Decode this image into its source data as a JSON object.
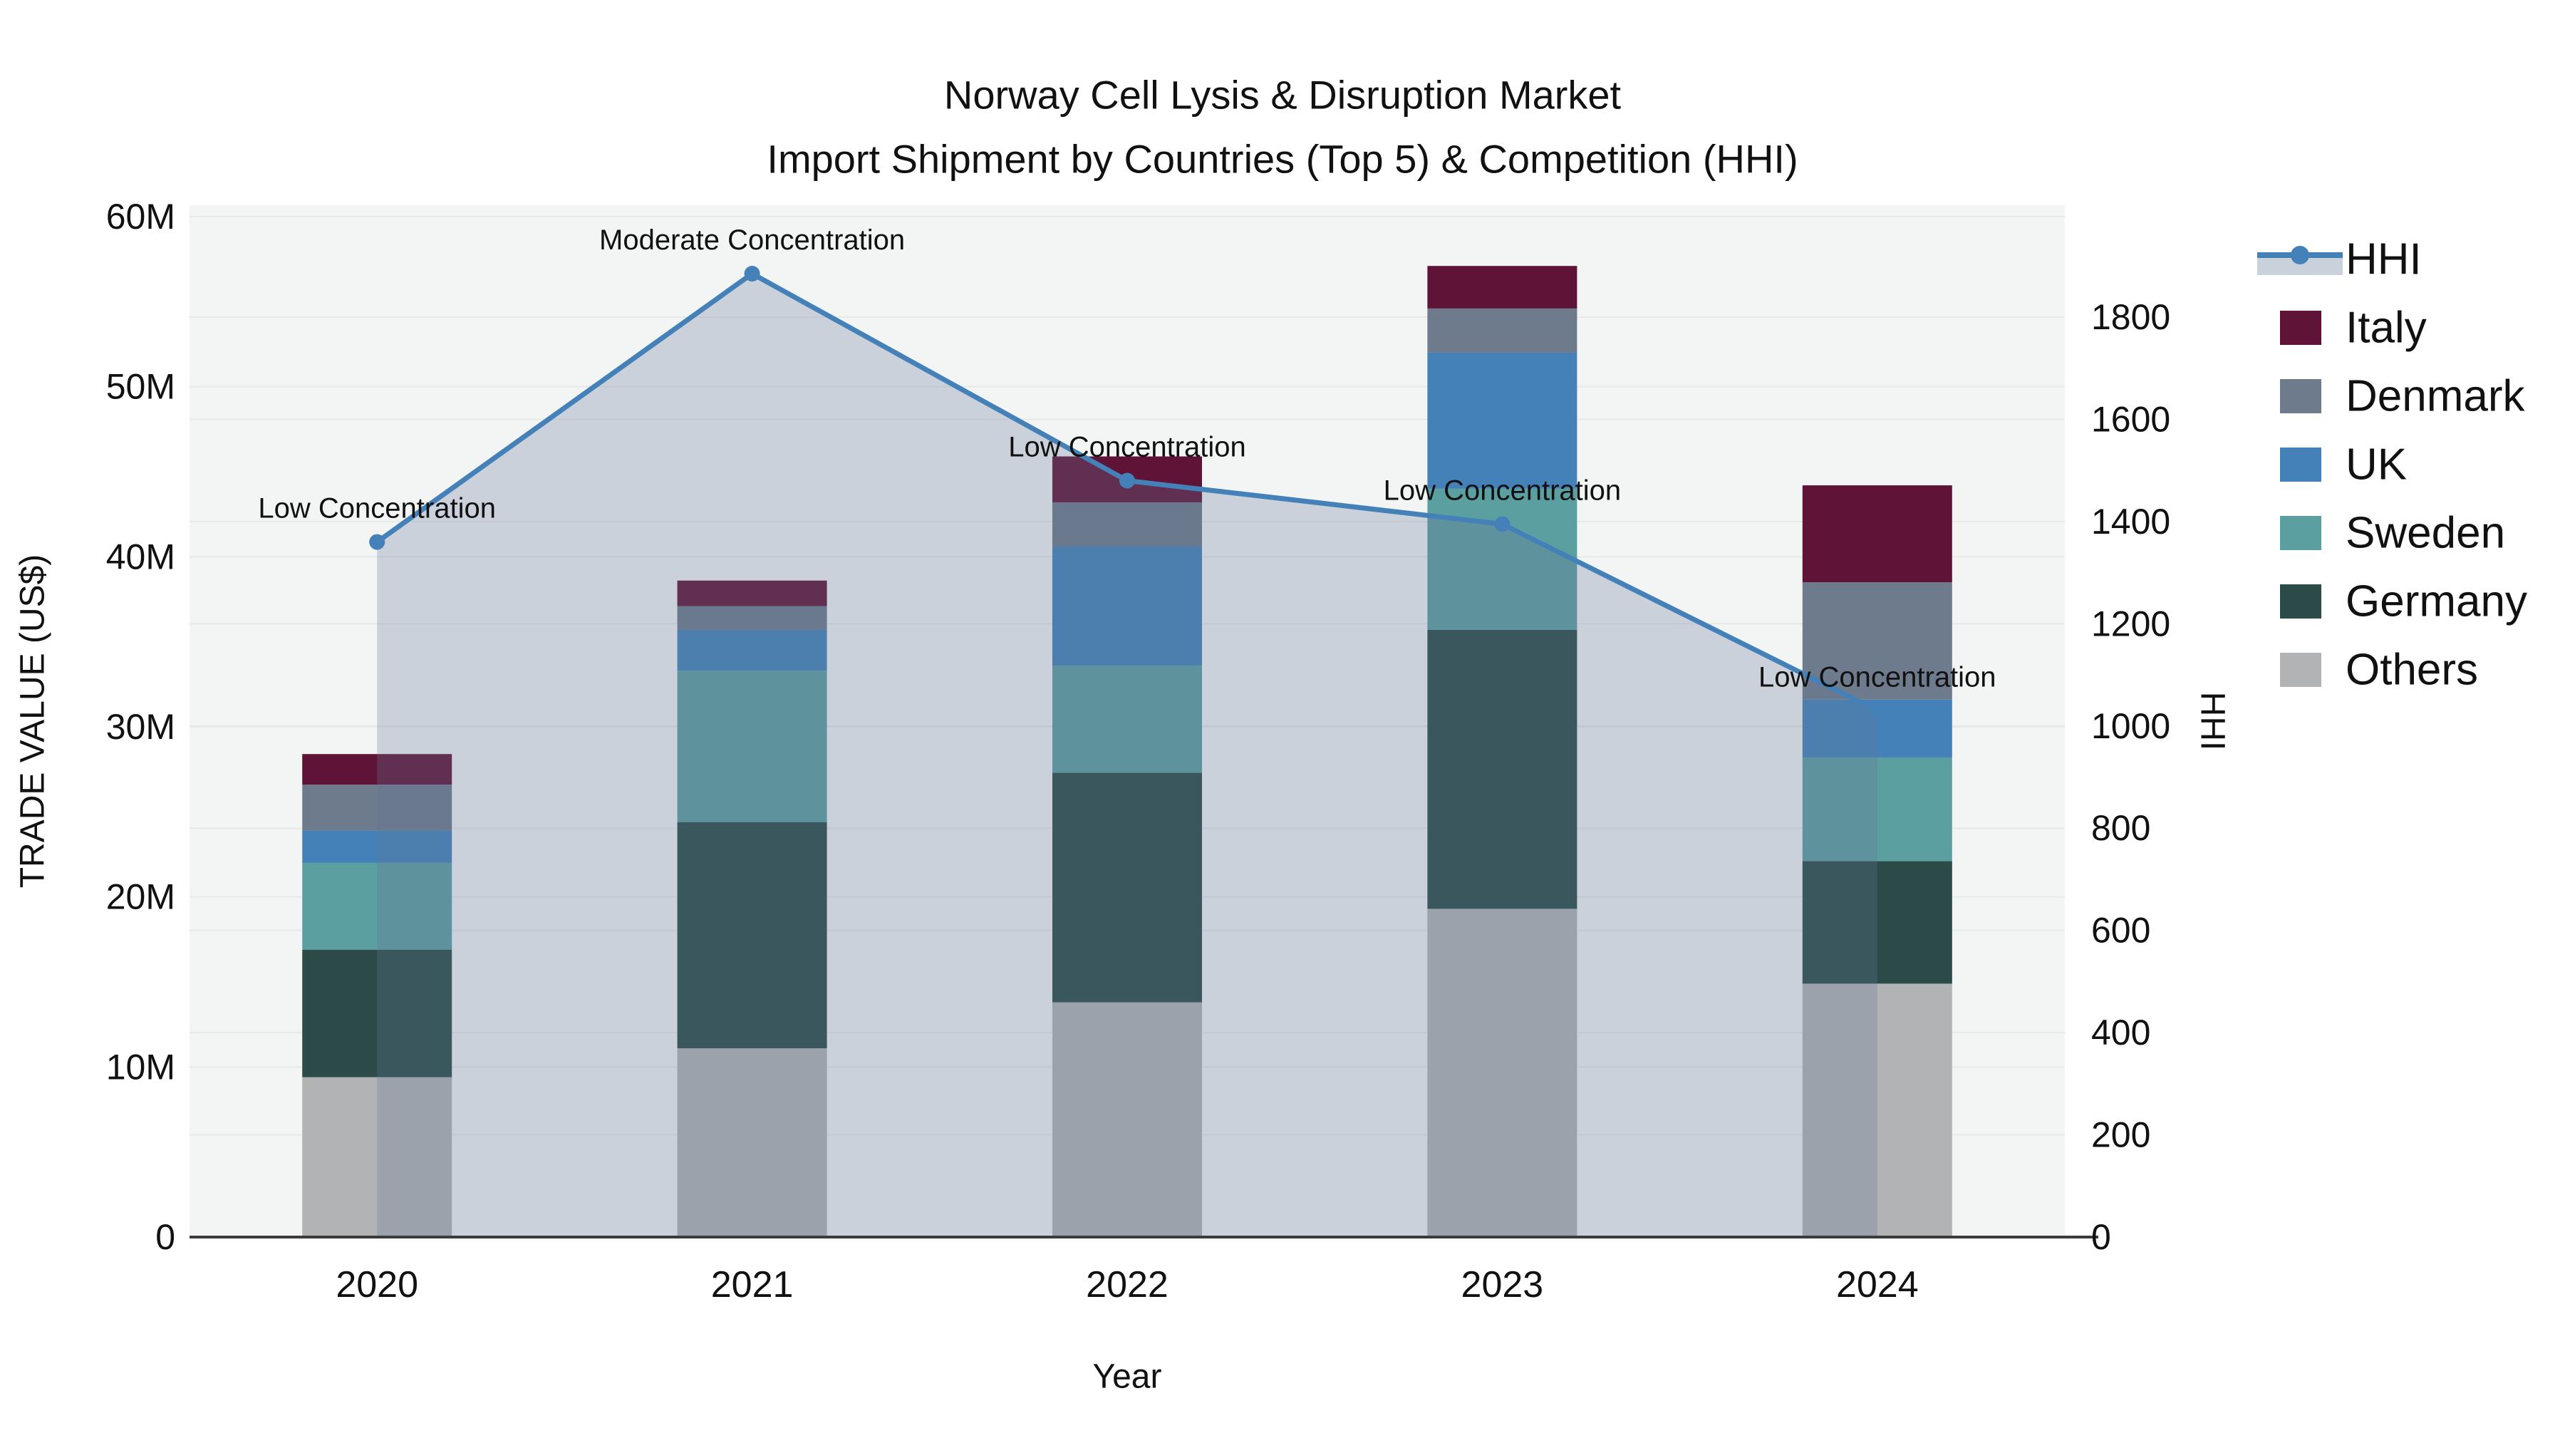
{
  "title": {
    "line1": "Norway Cell Lysis & Disruption Market",
    "line2": "Import Shipment by Countries (Top 5) & Competition (HHI)"
  },
  "axes": {
    "left": {
      "title": "TRADE VALUE (US$)",
      "tick_labels": [
        "0",
        "10M",
        "20M",
        "30M",
        "40M",
        "50M",
        "60M"
      ],
      "range_m": [
        0,
        60
      ]
    },
    "right": {
      "title": "HHI",
      "tick_labels": [
        "0",
        "200",
        "400",
        "600",
        "800",
        "1000",
        "1200",
        "1400",
        "1600",
        "1800"
      ],
      "range": [
        0,
        1800
      ]
    },
    "x": {
      "title": "Year",
      "categories": [
        "2020",
        "2021",
        "2022",
        "2023",
        "2024"
      ]
    }
  },
  "colors": {
    "plot_bg": "#F3F4F4",
    "grid": "#E7E9E9",
    "axis_line": "#3C3C3C",
    "text": "#111111",
    "hhi_line": "#4481B8",
    "area_fill": "rgba(100,120,150,0.28)",
    "legend_band": "#C9D1DB"
  },
  "legend": {
    "items": [
      {
        "label": "HHI",
        "type": "line",
        "color": "#4481B8"
      },
      {
        "label": "Italy",
        "type": "swatch",
        "color": "#5F1437"
      },
      {
        "label": "Denmark",
        "type": "swatch",
        "color": "#6E7B8C"
      },
      {
        "label": "UK",
        "type": "swatch",
        "color": "#4381B8"
      },
      {
        "label": "Sweden",
        "type": "swatch",
        "color": "#5C9FA0"
      },
      {
        "label": "Germany",
        "type": "swatch",
        "color": "#2C4B48"
      },
      {
        "label": "Others",
        "type": "swatch",
        "color": "#B1B3B4"
      }
    ]
  },
  "chart_data": {
    "type": "bar+line",
    "title": "Norway Cell Lysis & Disruption Market — Import Shipment by Countries (Top 5) & Competition (HHI)",
    "categories": [
      "2020",
      "2021",
      "2022",
      "2023",
      "2024"
    ],
    "xlabel": "Year",
    "ylabel_left": "TRADE VALUE (US$)",
    "ylabel_right": "HHI",
    "ylim_left_millions": [
      0,
      60
    ],
    "ylim_right": [
      0,
      1800
    ],
    "grid": true,
    "legend_position": "right",
    "bar_unit": "million US$ (stacked bottom-up in listed order)",
    "series": [
      {
        "name": "Others",
        "color": "#B1B3B4",
        "values": [
          9.4,
          11.1,
          13.8,
          19.3,
          14.9
        ]
      },
      {
        "name": "Germany",
        "color": "#2C4B48",
        "values": [
          7.5,
          13.3,
          13.5,
          16.4,
          7.2
        ]
      },
      {
        "name": "Sweden",
        "color": "#5C9FA0",
        "values": [
          5.1,
          8.9,
          6.3,
          8.3,
          6.1
        ]
      },
      {
        "name": "UK",
        "color": "#4381B8",
        "values": [
          1.9,
          2.4,
          7.0,
          8.0,
          3.4
        ]
      },
      {
        "name": "Denmark",
        "color": "#6E7B8C",
        "values": [
          2.7,
          1.4,
          2.6,
          2.6,
          6.9
        ]
      },
      {
        "name": "Italy",
        "color": "#5F1437",
        "values": [
          1.8,
          1.5,
          2.7,
          2.5,
          5.7
        ]
      }
    ],
    "line_series": {
      "name": "HHI",
      "axis": "right",
      "color": "#4481B8",
      "values": [
        1360,
        1885,
        1480,
        1395,
        1030
      ]
    },
    "annotations": [
      {
        "year": "2020",
        "label": "Low Concentration"
      },
      {
        "year": "2021",
        "label": "Moderate Concentration"
      },
      {
        "year": "2022",
        "label": "Low Concentration"
      },
      {
        "year": "2023",
        "label": "Low Concentration"
      },
      {
        "year": "2024",
        "label": "Low Concentration"
      }
    ]
  }
}
